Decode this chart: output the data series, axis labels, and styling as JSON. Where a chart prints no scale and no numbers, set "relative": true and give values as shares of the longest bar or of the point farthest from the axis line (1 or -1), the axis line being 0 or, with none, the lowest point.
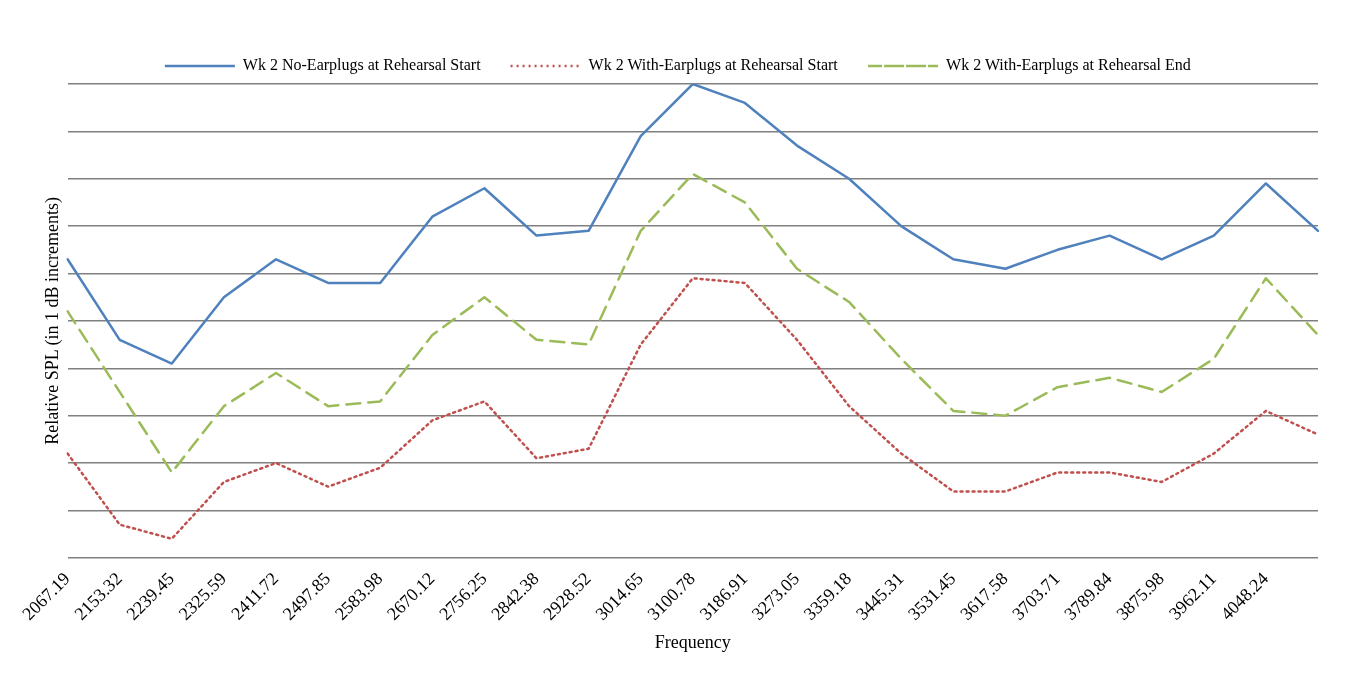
{
  "chart_data": {
    "type": "line",
    "relative": true,
    "xlabel": "Frequency",
    "ylabel": "Relative SPL (in 1 dB increments)",
    "legend": "top",
    "grid": "y",
    "marker": "none",
    "categories": [
      "2067.19",
      "2153.32",
      "2239.45",
      "2325.59",
      "2411.72",
      "2497.85",
      "2583.98",
      "2670.12",
      "2756.25",
      "2842.38",
      "2928.52",
      "3014.65",
      "3100.78",
      "3186.91",
      "3273.05",
      "3359.18",
      "3445.31",
      "3531.45",
      "3617.58",
      "3703.71",
      "3789.84",
      "3875.98",
      "3962.11",
      "4048.24",
      null
    ],
    "series": [
      {
        "name": "Wk 2 No-Earplugs at Rehearsal Start",
        "color": "#4f81bd",
        "line_style": "solid",
        "values": [
          0.63,
          0.46,
          0.41,
          0.55,
          0.63,
          0.58,
          0.58,
          0.72,
          0.78,
          0.68,
          0.69,
          0.89,
          1.0,
          0.96,
          0.87,
          0.8,
          0.7,
          0.63,
          0.61,
          0.65,
          0.68,
          0.63,
          0.68,
          0.79,
          0.69
        ]
      },
      {
        "name": "Wk 2 With-Earplugs at Rehearsal Start",
        "color": "#c0504d",
        "line_style": "dotted",
        "values": [
          0.22,
          0.07,
          0.04,
          0.16,
          0.2,
          0.15,
          0.19,
          0.29,
          0.33,
          0.21,
          0.23,
          0.45,
          0.59,
          0.58,
          0.46,
          0.32,
          0.22,
          0.14,
          0.14,
          0.18,
          0.18,
          0.16,
          0.22,
          0.31,
          0.26
        ]
      },
      {
        "name": "Wk 2 With-Earplugs at Rehearsal End",
        "color": "#9bbb59",
        "line_style": "dashed",
        "values": [
          0.52,
          0.35,
          0.18,
          0.32,
          0.39,
          0.32,
          0.33,
          0.47,
          0.55,
          0.46,
          0.45,
          0.69,
          0.81,
          0.75,
          0.61,
          0.54,
          0.42,
          0.31,
          0.3,
          0.36,
          0.38,
          0.35,
          0.42,
          0.59,
          0.47
        ]
      }
    ]
  }
}
